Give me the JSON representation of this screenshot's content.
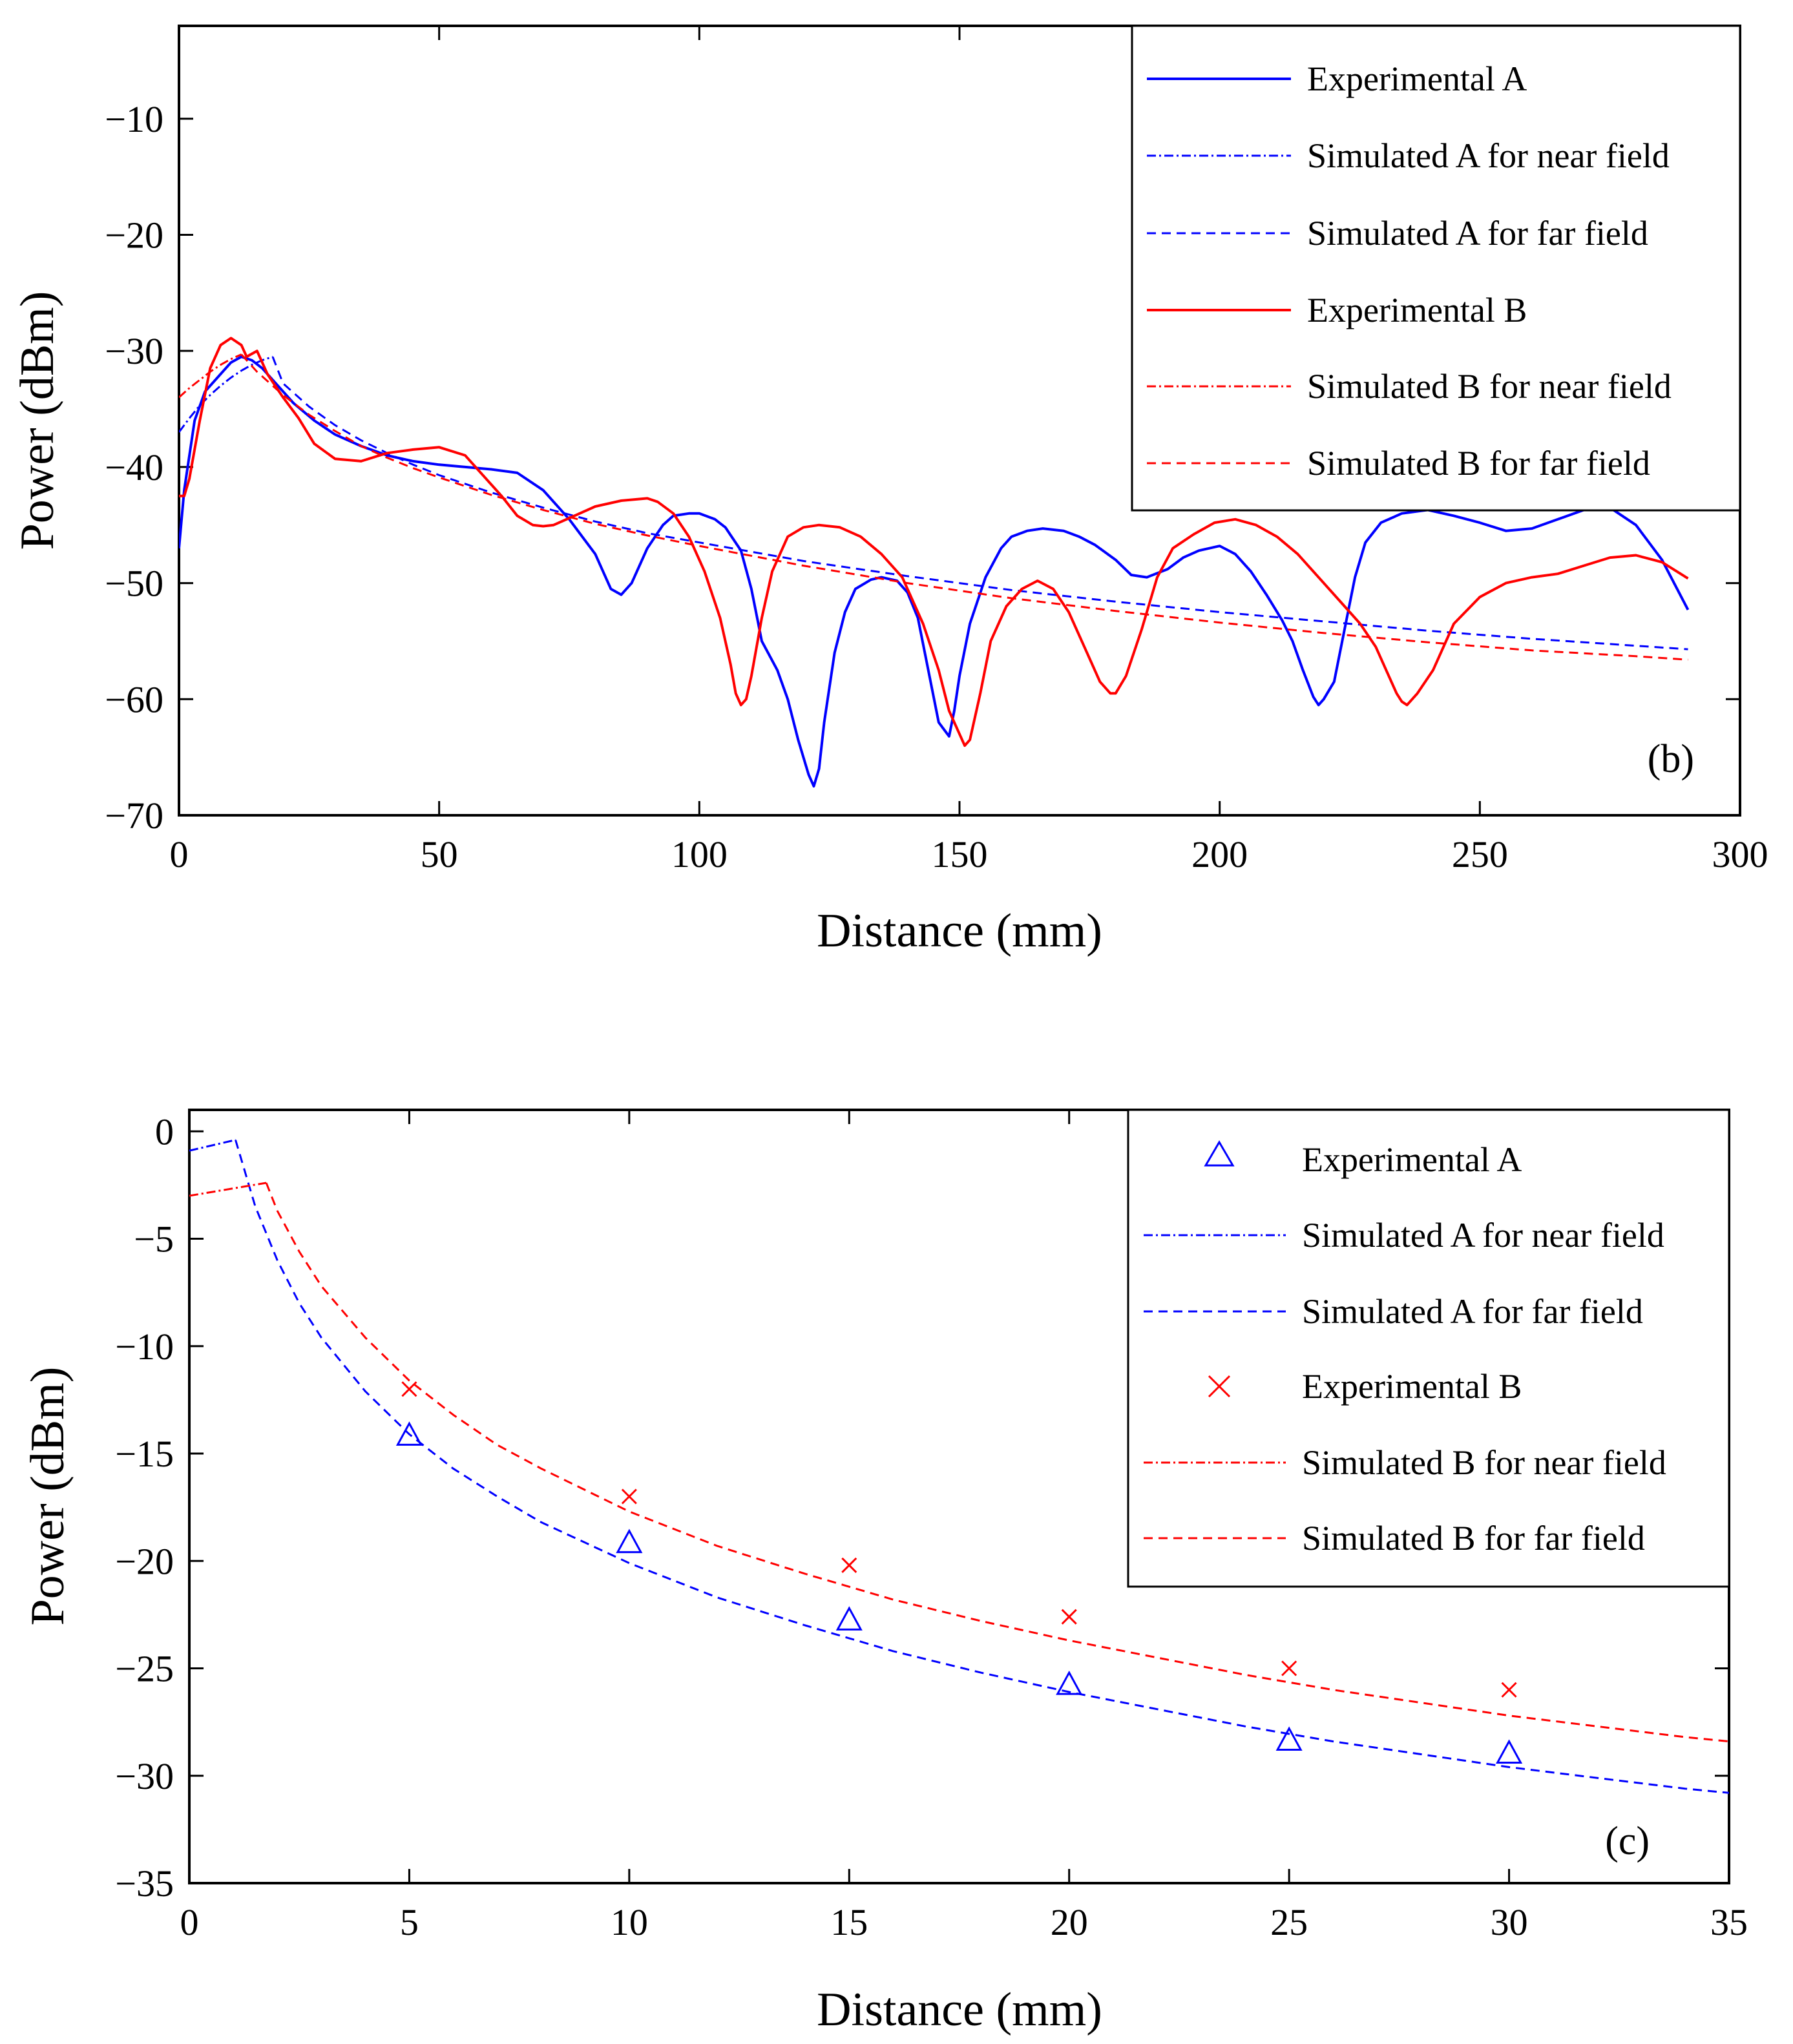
{
  "chart_data": [
    {
      "type": "line",
      "panel_label": "(b)",
      "xlabel": "Distance (mm)",
      "ylabel": "Power (dBm)",
      "xlim": [
        0,
        300
      ],
      "ylim": [
        -70,
        -2
      ],
      "xticks": [
        0,
        50,
        100,
        150,
        200,
        250,
        300
      ],
      "yticks": [
        -70,
        -60,
        -50,
        -40,
        -30,
        -20,
        -10
      ],
      "xtick_labels": [
        "0",
        "50",
        "100",
        "150",
        "200",
        "250",
        "300"
      ],
      "ytick_labels": [
        "−70",
        "−60",
        "−50",
        "−40",
        "−30",
        "−20",
        "−10"
      ],
      "legend_position": "top-right",
      "series": [
        {
          "name": "Experimental A",
          "color": "#0000ff",
          "style": "solid",
          "x": [
            0,
            1,
            3,
            5,
            8,
            10,
            12,
            14,
            16,
            18,
            22,
            26,
            30,
            35,
            40,
            45,
            50,
            55,
            60,
            65,
            70,
            75,
            80,
            83,
            85,
            87,
            90,
            93,
            95,
            98,
            100,
            103,
            105,
            108,
            110,
            112,
            115,
            117,
            119,
            121,
            122,
            123,
            124,
            126,
            128,
            130,
            133,
            135,
            138,
            140,
            142,
            144,
            146,
            148,
            149,
            150,
            152,
            155,
            158,
            160,
            163,
            166,
            170,
            173,
            176,
            180,
            183,
            186,
            190,
            193,
            196,
            200,
            203,
            206,
            209,
            212,
            214,
            216,
            218,
            219,
            220,
            222,
            224,
            226,
            228,
            231,
            235,
            240,
            245,
            250,
            255,
            260,
            265,
            270,
            275,
            280,
            285,
            290
          ],
          "y": [
            -47,
            -42,
            -36,
            -33.5,
            -32,
            -31,
            -30.5,
            -30.8,
            -31.5,
            -32.5,
            -34.5,
            -36,
            -37.2,
            -38.2,
            -39,
            -39.5,
            -39.8,
            -40,
            -40.2,
            -40.5,
            -42,
            -44.5,
            -47.5,
            -50.5,
            -51,
            -50,
            -47,
            -45,
            -44.2,
            -44,
            -44,
            -44.5,
            -45.2,
            -47.2,
            -50.5,
            -55,
            -57.5,
            -60,
            -63.5,
            -66.5,
            -67.5,
            -66,
            -62,
            -56,
            -52.5,
            -50.5,
            -49.7,
            -49.5,
            -49.8,
            -50.8,
            -53,
            -57.5,
            -62,
            -63.2,
            -61,
            -58,
            -53.5,
            -49.5,
            -47,
            -46,
            -45.5,
            -45.3,
            -45.5,
            -46,
            -46.7,
            -48,
            -49.3,
            -49.5,
            -48.8,
            -47.8,
            -47.2,
            -46.8,
            -47.5,
            -49,
            -51,
            -53.2,
            -55,
            -57.5,
            -59.8,
            -60.5,
            -60,
            -58.5,
            -54,
            -49.5,
            -46.5,
            -44.8,
            -44,
            -43.7,
            -44.2,
            -44.8,
            -45.5,
            -45.3,
            -44.5,
            -43.7,
            -43.5,
            -45,
            -48,
            -52.3
          ]
        },
        {
          "name": "Simulated A for near field",
          "color": "#0000ff",
          "style": "dashdot",
          "x": [
            0,
            2,
            4,
            6,
            8,
            10,
            12,
            14,
            16,
            18
          ],
          "y": [
            -37,
            -35.8,
            -34.7,
            -33.8,
            -33,
            -32.3,
            -31.7,
            -31.2,
            -30.8,
            -30.5
          ]
        },
        {
          "name": "Simulated A for far field",
          "color": "#0000ff",
          "style": "dashed",
          "x": [
            18,
            20,
            25,
            30,
            35,
            40,
            45,
            50,
            60,
            70,
            80,
            90,
            100,
            120,
            140,
            160,
            180,
            200,
            220,
            240,
            260,
            280,
            290
          ],
          "y": [
            -30.5,
            -32.8,
            -34.8,
            -36.4,
            -37.7,
            -38.8,
            -39.8,
            -40.7,
            -42.2,
            -43.5,
            -44.7,
            -45.7,
            -46.5,
            -48.1,
            -49.4,
            -50.6,
            -51.6,
            -52.5,
            -53.3,
            -54.1,
            -54.8,
            -55.4,
            -55.7
          ]
        },
        {
          "name": "Experimental B",
          "color": "#ff0000",
          "style": "solid",
          "x": [
            0,
            1,
            2,
            4,
            6,
            8,
            10,
            12,
            13,
            15,
            17,
            20,
            23,
            26,
            30,
            35,
            40,
            45,
            50,
            55,
            58,
            62,
            65,
            68,
            70,
            72,
            75,
            80,
            85,
            90,
            92,
            95,
            98,
            101,
            104,
            106,
            107,
            108,
            109,
            110,
            112,
            114,
            117,
            120,
            123,
            127,
            131,
            135,
            139,
            143,
            146,
            148,
            150,
            151,
            152,
            154,
            156,
            159,
            162,
            165,
            168,
            171,
            174,
            177,
            179,
            180,
            182,
            185,
            188,
            191,
            195,
            199,
            203,
            207,
            211,
            215,
            219,
            223,
            227,
            230,
            232,
            234,
            235,
            236,
            238,
            241,
            245,
            250,
            255,
            260,
            265,
            270,
            275,
            280,
            285,
            290
          ],
          "y": [
            -42.5,
            -42.5,
            -41,
            -36,
            -31.5,
            -29.5,
            -28.9,
            -29.5,
            -30.5,
            -30,
            -32,
            -34,
            -35.8,
            -38,
            -39.3,
            -39.5,
            -38.8,
            -38.5,
            -38.3,
            -39,
            -40.5,
            -42.5,
            -44.2,
            -45,
            -45.1,
            -45,
            -44.4,
            -43.4,
            -42.9,
            -42.7,
            -43,
            -44,
            -46,
            -49,
            -53,
            -57,
            -59.5,
            -60.5,
            -60,
            -58,
            -53,
            -49,
            -46,
            -45.2,
            -45,
            -45.2,
            -46,
            -47.5,
            -49.5,
            -53.5,
            -57.5,
            -61,
            -63,
            -64,
            -63.5,
            -59.5,
            -55,
            -52,
            -50.5,
            -49.8,
            -50.5,
            -52.5,
            -55.5,
            -58.5,
            -59.5,
            -59.5,
            -58,
            -54,
            -49.5,
            -47,
            -45.8,
            -44.8,
            -44.5,
            -45,
            -46,
            -47.5,
            -49.5,
            -51.5,
            -53.5,
            -55.5,
            -57.5,
            -59.5,
            -60.2,
            -60.5,
            -59.5,
            -57.5,
            -53.5,
            -51.2,
            -50,
            -49.5,
            -49.2,
            -48.5,
            -47.8,
            -47.6,
            -48.2,
            -49.6
          ]
        },
        {
          "name": "Simulated B for near field",
          "color": "#ff0000",
          "style": "dashdot",
          "x": [
            0,
            2,
            4,
            6,
            8,
            10,
            12
          ],
          "y": [
            -34,
            -33.2,
            -32.5,
            -31.8,
            -31.2,
            -30.7,
            -30.3
          ]
        },
        {
          "name": "Simulated B for far field",
          "color": "#ff0000",
          "style": "dashed",
          "x": [
            12,
            15,
            20,
            25,
            30,
            35,
            40,
            45,
            50,
            60,
            70,
            80,
            90,
            100,
            120,
            140,
            160,
            180,
            200,
            220,
            240,
            260,
            280,
            290
          ],
          "y": [
            -30.3,
            -31.8,
            -33.8,
            -35.5,
            -36.9,
            -38.2,
            -39.2,
            -40.1,
            -40.9,
            -42.4,
            -43.7,
            -44.9,
            -45.9,
            -46.8,
            -48.5,
            -50,
            -51.3,
            -52.4,
            -53.4,
            -54.3,
            -55.1,
            -55.8,
            -56.3,
            -56.6
          ]
        }
      ]
    },
    {
      "type": "line",
      "panel_label": "(c)",
      "xlabel": "Distance (mm)",
      "ylabel": "Power (dBm)",
      "xlim": [
        0,
        35
      ],
      "ylim": [
        -35,
        1
      ],
      "xticks": [
        0,
        5,
        10,
        15,
        20,
        25,
        30,
        35
      ],
      "yticks": [
        -35,
        -30,
        -25,
        -20,
        -15,
        -10,
        -5,
        0
      ],
      "xtick_labels": [
        "0",
        "5",
        "10",
        "15",
        "20",
        "25",
        "30",
        "35"
      ],
      "ytick_labels": [
        "−35",
        "−30",
        "−25",
        "−20",
        "−15",
        "−10",
        "−5",
        "0"
      ],
      "legend_position": "top-right",
      "series": [
        {
          "name": "Experimental A",
          "color": "#0000ff",
          "style": "marker-triangle",
          "x": [
            5,
            10,
            15,
            20,
            25,
            30
          ],
          "y": [
            -14.2,
            -19.2,
            -22.8,
            -25.8,
            -28.4,
            -29.0
          ]
        },
        {
          "name": "Simulated A for near field",
          "color": "#0000ff",
          "style": "dashdot",
          "x": [
            0,
            1.05
          ],
          "y": [
            -0.9,
            -0.4
          ]
        },
        {
          "name": "Simulated A for far field",
          "color": "#0000ff",
          "style": "dashed",
          "x": [
            1.05,
            1.5,
            2,
            2.5,
            3,
            4,
            5,
            6,
            7,
            8,
            10,
            12,
            14,
            16,
            18,
            20,
            22,
            24,
            26,
            28,
            30,
            32,
            34,
            35
          ],
          "y": [
            -0.4,
            -3.5,
            -6,
            -8,
            -9.6,
            -12.1,
            -14.1,
            -15.7,
            -17,
            -18.2,
            -20.1,
            -21.7,
            -23,
            -24.2,
            -25.2,
            -26.1,
            -26.9,
            -27.7,
            -28.4,
            -29,
            -29.6,
            -30.1,
            -30.6,
            -30.8
          ]
        },
        {
          "name": "Experimental B",
          "color": "#ff0000",
          "style": "marker-x",
          "x": [
            5,
            10,
            15,
            20,
            25,
            30
          ],
          "y": [
            -12.0,
            -17.0,
            -20.2,
            -22.6,
            -25.0,
            -26.0
          ]
        },
        {
          "name": "Simulated B for near field",
          "color": "#ff0000",
          "style": "dashdot",
          "x": [
            0,
            1.75
          ],
          "y": [
            -3.0,
            -2.4
          ]
        },
        {
          "name": "Simulated B for far field",
          "color": "#ff0000",
          "style": "dashed",
          "x": [
            1.75,
            2,
            2.5,
            3,
            4,
            5,
            6,
            7,
            8,
            10,
            12,
            14,
            16,
            18,
            20,
            22,
            24,
            26,
            28,
            30,
            32,
            34,
            35
          ],
          "y": [
            -2.4,
            -3.7,
            -5.6,
            -7.2,
            -9.6,
            -11.6,
            -13.2,
            -14.6,
            -15.7,
            -17.7,
            -19.3,
            -20.6,
            -21.8,
            -22.8,
            -23.7,
            -24.5,
            -25.3,
            -26,
            -26.6,
            -27.2,
            -27.7,
            -28.2,
            -28.4
          ]
        }
      ]
    }
  ]
}
